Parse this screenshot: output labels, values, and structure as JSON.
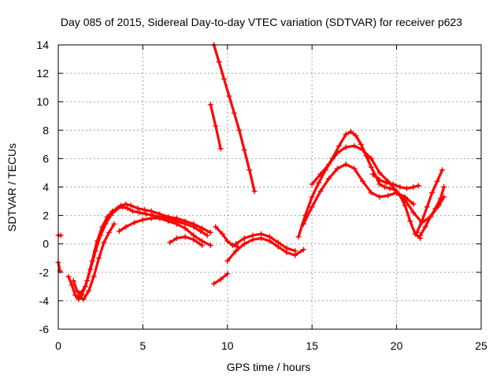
{
  "chart_data": {
    "type": "scatter",
    "title": "Day 085 of 2015, Sidereal Day-to-day VTEC variation (SDTVAR) for receiver p623",
    "xlabel": "GPS time / hours",
    "ylabel": "SDTVAR / TECUs",
    "xlim": [
      0,
      25
    ],
    "ylim": [
      -6,
      14
    ],
    "xticks": [
      "0",
      "5",
      "10",
      "15",
      "20",
      "25"
    ],
    "yticks": [
      "-6",
      "-4",
      "-2",
      "0",
      "2",
      "4",
      "6",
      "8",
      "10",
      "12",
      "14"
    ],
    "grid": true,
    "marker": "plus",
    "color": "#ff0000",
    "series": [
      {
        "x": [
          0.6,
          0.8,
          1.0,
          1.2,
          1.4,
          1.7,
          2.0,
          2.3,
          2.6,
          2.9,
          3.2,
          3.5,
          3.8,
          4.1,
          4.4,
          4.8,
          5.2,
          5.6,
          6.0,
          6.5,
          7.0,
          7.5,
          8.0,
          8.4,
          8.8
        ],
        "y": [
          -2.3,
          -2.9,
          -3.6,
          -3.9,
          -3.6,
          -2.6,
          -1.2,
          0.2,
          1.2,
          1.9,
          2.3,
          2.5,
          2.6,
          2.5,
          2.3,
          2.2,
          2.1,
          2.0,
          1.9,
          1.8,
          1.6,
          1.4,
          1.2,
          0.9,
          0.6
        ]
      },
      {
        "x": [
          0.9,
          1.1,
          1.3,
          1.6,
          1.9,
          2.2,
          2.5,
          2.8,
          3.1,
          3.4,
          3.7,
          4.0,
          4.3,
          4.7,
          5.1,
          5.5,
          6.0,
          6.5,
          7.0,
          7.5,
          8.0,
          8.5,
          9.0
        ],
        "y": [
          -2.6,
          -3.3,
          -3.5,
          -3.0,
          -1.8,
          -0.5,
          0.6,
          1.4,
          2.0,
          2.4,
          2.7,
          2.8,
          2.7,
          2.5,
          2.4,
          2.3,
          2.1,
          1.9,
          1.8,
          1.6,
          1.4,
          1.1,
          0.8
        ]
      },
      {
        "x": [
          1.2,
          1.5,
          1.8,
          2.1,
          2.4,
          2.7,
          3.0,
          3.3
        ],
        "y": [
          -3.7,
          -3.9,
          -3.3,
          -2.3,
          -1.0,
          0.1,
          0.8,
          1.4
        ]
      },
      {
        "x": [
          3.6,
          4.0,
          4.5,
          5.0,
          5.5,
          6.0,
          6.5,
          7.0,
          7.5,
          8.0,
          8.5,
          9.0
        ],
        "y": [
          0.9,
          1.2,
          1.5,
          1.7,
          1.8,
          1.8,
          1.6,
          1.4,
          1.1,
          0.6,
          0.2,
          -0.1
        ]
      },
      {
        "x": [
          6.6,
          7.0,
          7.5,
          8.0,
          8.5
        ],
        "y": [
          0.1,
          0.4,
          0.5,
          0.3,
          -0.1
        ]
      },
      {
        "x": [
          9.2,
          9.5,
          9.8,
          10.1,
          10.4,
          10.7,
          11.0,
          11.3,
          11.6
        ],
        "y": [
          14.0,
          12.8,
          11.6,
          10.4,
          9.2,
          8.0,
          6.6,
          5.2,
          3.7
        ]
      },
      {
        "x": [
          9.0,
          9.3,
          9.6
        ],
        "y": [
          9.8,
          8.3,
          6.7
        ]
      },
      {
        "x": [
          9.2,
          9.6,
          10.0
        ],
        "y": [
          -2.8,
          -2.5,
          -2.1
        ]
      },
      {
        "x": [
          9.3,
          9.7,
          10.0,
          10.3,
          10.6
        ],
        "y": [
          1.2,
          0.7,
          0.2,
          -0.1,
          -0.2
        ]
      },
      {
        "x": [
          10.0,
          10.5,
          11.0,
          11.5,
          12.0,
          12.5,
          13.0,
          13.5,
          14.0,
          14.5
        ],
        "y": [
          -1.2,
          -0.5,
          0.0,
          0.3,
          0.4,
          0.2,
          -0.2,
          -0.6,
          -0.8,
          -0.4
        ]
      },
      {
        "x": [
          10.5,
          11.0,
          11.5,
          12.0,
          12.5,
          13.0,
          13.5,
          14.0
        ],
        "y": [
          0.0,
          0.4,
          0.6,
          0.7,
          0.5,
          0.1,
          -0.3,
          -0.5
        ]
      },
      {
        "x": [
          14.2,
          14.6,
          15.0,
          15.4,
          15.8,
          16.2,
          16.6,
          17.0,
          17.3,
          17.6,
          17.9,
          18.2,
          18.5,
          18.8,
          19.0,
          19.3,
          19.6,
          19.9,
          20.2,
          20.5,
          20.8,
          21.1,
          21.4
        ],
        "y": [
          0.5,
          2.0,
          3.3,
          4.3,
          5.2,
          6.0,
          6.9,
          7.7,
          7.9,
          7.6,
          7.0,
          6.2,
          5.4,
          4.7,
          4.2,
          4.0,
          3.9,
          3.8,
          3.4,
          2.7,
          1.6,
          0.7,
          0.4
        ]
      },
      {
        "x": [
          15.0,
          15.5,
          16.0,
          16.5,
          17.0,
          17.5,
          18.0,
          18.5,
          19.0,
          19.5,
          20.0,
          20.5,
          21.0,
          21.5,
          22.0,
          22.5,
          22.8
        ],
        "y": [
          4.2,
          4.9,
          5.6,
          6.4,
          6.8,
          6.9,
          6.6,
          6.0,
          5.0,
          4.4,
          3.7,
          3.1,
          2.2,
          1.5,
          1.9,
          2.7,
          3.3
        ]
      },
      {
        "x": [
          14.5,
          15.0,
          15.5,
          16.0,
          16.5,
          17.0,
          17.5,
          18.0,
          18.5,
          19.0,
          19.5,
          20.0,
          20.5,
          21.0
        ],
        "y": [
          1.4,
          2.6,
          3.7,
          4.6,
          5.3,
          5.6,
          5.3,
          4.4,
          3.6,
          3.3,
          3.4,
          3.6,
          3.3,
          2.8
        ]
      },
      {
        "x": [
          18.6,
          19.0,
          19.4,
          19.8,
          20.2,
          20.6,
          21.0,
          21.3
        ],
        "y": [
          4.9,
          4.5,
          4.3,
          4.2,
          4.0,
          3.9,
          4.0,
          4.1
        ]
      },
      {
        "x": [
          21.2,
          21.5,
          21.8,
          22.1,
          22.4,
          22.7
        ],
        "y": [
          0.8,
          1.6,
          2.6,
          3.6,
          4.4,
          5.2
        ]
      },
      {
        "x": [
          21.4,
          21.7,
          22.0,
          22.3,
          22.6,
          22.8
        ],
        "y": [
          0.6,
          1.2,
          1.9,
          2.5,
          3.2,
          4.0
        ]
      },
      {
        "x": [
          0.0,
          0.15
        ],
        "y": [
          0.6,
          0.6
        ]
      },
      {
        "x": [
          0.0,
          0.1
        ],
        "y": [
          -1.3,
          -1.9
        ]
      }
    ]
  }
}
